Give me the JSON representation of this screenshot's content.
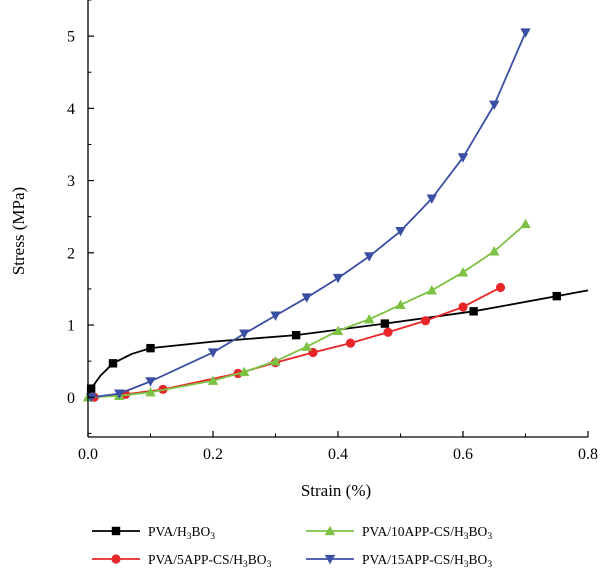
{
  "chart_data": {
    "type": "line",
    "xlabel": "Strain (%)",
    "ylabel": "Stress (MPa)",
    "xlim": [
      0.0,
      0.8
    ],
    "ylim": [
      -0.55,
      5.5
    ],
    "xticks": [
      0.0,
      0.2,
      0.4,
      0.6,
      0.8
    ],
    "xtick_labels": [
      "0.0",
      "0.2",
      "0.4",
      "0.6",
      "0.8"
    ],
    "yticks": [
      0,
      1,
      2,
      3,
      4,
      5
    ],
    "ytick_labels": [
      "0",
      "1",
      "2",
      "3",
      "4",
      "5"
    ],
    "grid": false,
    "legend_position": "bottom",
    "series": [
      {
        "name": "PVA/H3BO3",
        "legend": {
          "pre": "PVA/H",
          "sub1": "3",
          "mid": "BO",
          "sub2": "3"
        },
        "color": "#000000",
        "marker": "square",
        "x": [
          0.005,
          0.04,
          0.1,
          0.333,
          0.475,
          0.617,
          0.75
        ],
        "y": [
          0.12,
          0.47,
          0.68,
          0.86,
          1.02,
          1.19,
          1.4
        ],
        "line_x": [
          0.0,
          0.005,
          0.02,
          0.04,
          0.07,
          0.1,
          0.2,
          0.333,
          0.475,
          0.617,
          0.75,
          0.8
        ],
        "line_y": [
          0.0,
          0.12,
          0.3,
          0.47,
          0.6,
          0.68,
          0.77,
          0.86,
          1.02,
          1.19,
          1.4,
          1.48
        ]
      },
      {
        "name": "PVA/5APP-CS/H3BO3",
        "legend": {
          "pre": "PVA/5APP-CS/H",
          "sub1": "3",
          "mid": "BO",
          "sub2": "3"
        },
        "color": "#e8262a",
        "marker": "circle",
        "x": [
          0.01,
          0.06,
          0.12,
          0.24,
          0.3,
          0.36,
          0.42,
          0.48,
          0.54,
          0.6,
          0.66
        ],
        "y": [
          0.0,
          0.04,
          0.11,
          0.33,
          0.48,
          0.62,
          0.75,
          0.9,
          1.06,
          1.25,
          1.52
        ],
        "line_x": [
          0.0,
          0.01,
          0.06,
          0.12,
          0.24,
          0.3,
          0.36,
          0.42,
          0.48,
          0.54,
          0.6,
          0.66
        ],
        "line_y": [
          0.0,
          0.0,
          0.04,
          0.11,
          0.33,
          0.48,
          0.62,
          0.75,
          0.9,
          1.06,
          1.25,
          1.52
        ]
      },
      {
        "name": "PVA/10APP-CS/H3BO3",
        "legend": {
          "pre": "PVA/10APP-CS/H",
          "sub1": "3",
          "mid": "BO",
          "sub2": "3"
        },
        "color": "#7cc242",
        "marker": "triangle-up",
        "x": [
          0.0,
          0.05,
          0.1,
          0.2,
          0.25,
          0.3,
          0.35,
          0.4,
          0.45,
          0.5,
          0.55,
          0.6,
          0.65,
          0.7
        ],
        "y": [
          0.0,
          0.02,
          0.07,
          0.23,
          0.35,
          0.5,
          0.7,
          0.92,
          1.08,
          1.28,
          1.48,
          1.73,
          2.02,
          2.4
        ],
        "line_x": [
          0.0,
          0.05,
          0.1,
          0.2,
          0.25,
          0.3,
          0.35,
          0.4,
          0.45,
          0.5,
          0.55,
          0.6,
          0.65,
          0.7
        ],
        "line_y": [
          0.0,
          0.02,
          0.07,
          0.23,
          0.35,
          0.5,
          0.7,
          0.92,
          1.08,
          1.28,
          1.48,
          1.73,
          2.02,
          2.4
        ]
      },
      {
        "name": "PVA/15APP-CS/H3BO3",
        "legend": {
          "pre": "PVA/15APP-CS/H",
          "sub1": "3",
          "mid": "BO",
          "sub2": "3"
        },
        "color": "#3a4ea3",
        "marker": "triangle-down",
        "x": [
          0.005,
          0.05,
          0.1,
          0.2,
          0.25,
          0.3,
          0.35,
          0.4,
          0.45,
          0.5,
          0.55,
          0.6,
          0.65,
          0.7
        ],
        "y": [
          0.0,
          0.05,
          0.22,
          0.62,
          0.88,
          1.13,
          1.38,
          1.65,
          1.95,
          2.3,
          2.75,
          3.32,
          4.05,
          5.05
        ],
        "line_x": [
          0.0,
          0.005,
          0.05,
          0.1,
          0.2,
          0.25,
          0.3,
          0.35,
          0.4,
          0.45,
          0.5,
          0.55,
          0.6,
          0.65,
          0.7
        ],
        "line_y": [
          0.0,
          0.0,
          0.05,
          0.22,
          0.62,
          0.88,
          1.13,
          1.38,
          1.65,
          1.95,
          2.3,
          2.75,
          3.32,
          4.05,
          5.05
        ]
      }
    ]
  }
}
